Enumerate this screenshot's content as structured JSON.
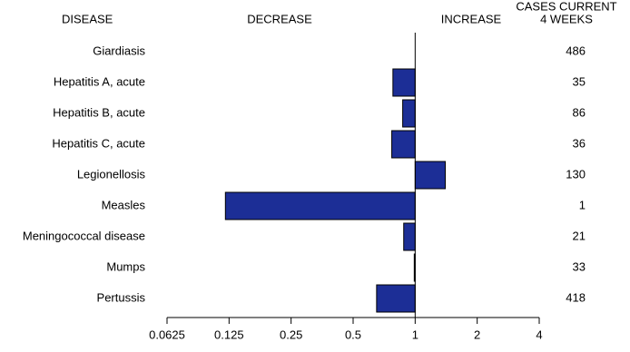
{
  "chart_data": {
    "type": "bar",
    "orientation": "horizontal",
    "log_base": 2,
    "category_header": "DISEASE",
    "decrease_label": "DECREASE",
    "increase_label": "INCREASE",
    "cases_header": [
      "CASES CURRENT",
      "4 WEEKS"
    ],
    "categories": [
      "Giardiasis",
      "Hepatitis A, acute",
      "Hepatitis B, acute",
      "Hepatitis C, acute",
      "Legionellosis",
      "Measles",
      "Meningococcal disease",
      "Mumps",
      "Pertussis"
    ],
    "values": [
      1,
      0.78,
      0.87,
      0.77,
      1.4,
      0.12,
      0.88,
      0.99,
      0.65
    ],
    "cases": [
      486,
      35,
      86,
      36,
      130,
      1,
      21,
      33,
      418
    ],
    "color": "#1c2e96",
    "xlim": [
      0.0625,
      4
    ],
    "xticks": [
      0.0625,
      0.125,
      0.25,
      0.5,
      1,
      2,
      4
    ],
    "baseline": 1
  }
}
